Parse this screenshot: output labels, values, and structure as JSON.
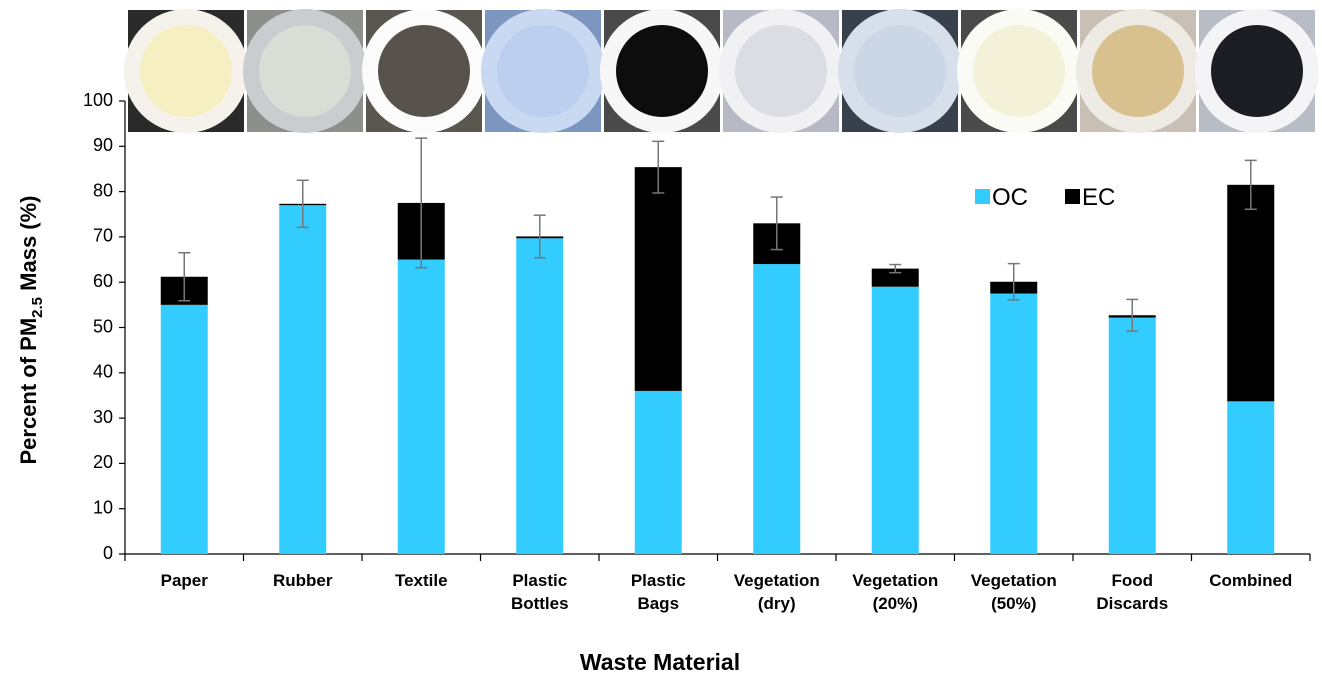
{
  "chart_data": {
    "type": "stacked_bar",
    "categories": [
      "Paper",
      "Rubber",
      "Textile",
      "Plastic Bottles",
      "Plastic Bags",
      "Vegetation (dry)",
      "Vegetation (20%)",
      "Vegetation (50%)",
      "Food Discards",
      "Combined"
    ],
    "series": [
      {
        "name": "OC",
        "color": "#33ccff",
        "values": [
          55,
          77,
          65,
          69.7,
          36,
          64,
          59,
          57.5,
          52.2,
          33.7
        ]
      },
      {
        "name": "EC",
        "color": "#000000",
        "values": [
          6.2,
          0.3,
          12.5,
          0.4,
          49.4,
          9,
          4,
          2.6,
          0.5,
          47.8
        ]
      }
    ],
    "errors": [
      5.3,
      5.2,
      14.3,
      4.7,
      5.7,
      5.8,
      0.9,
      4,
      3.5,
      5.4
    ],
    "ylim": [
      0,
      100
    ],
    "yticks": [
      0,
      10,
      20,
      30,
      40,
      50,
      60,
      70,
      80,
      90,
      100
    ],
    "y_label": {
      "text": "Percent of PM",
      "subscript": "2.5",
      "suffix": " Mass (%)"
    },
    "x_label": "Waste Material",
    "legend": "upper right",
    "grid": false
  }
}
